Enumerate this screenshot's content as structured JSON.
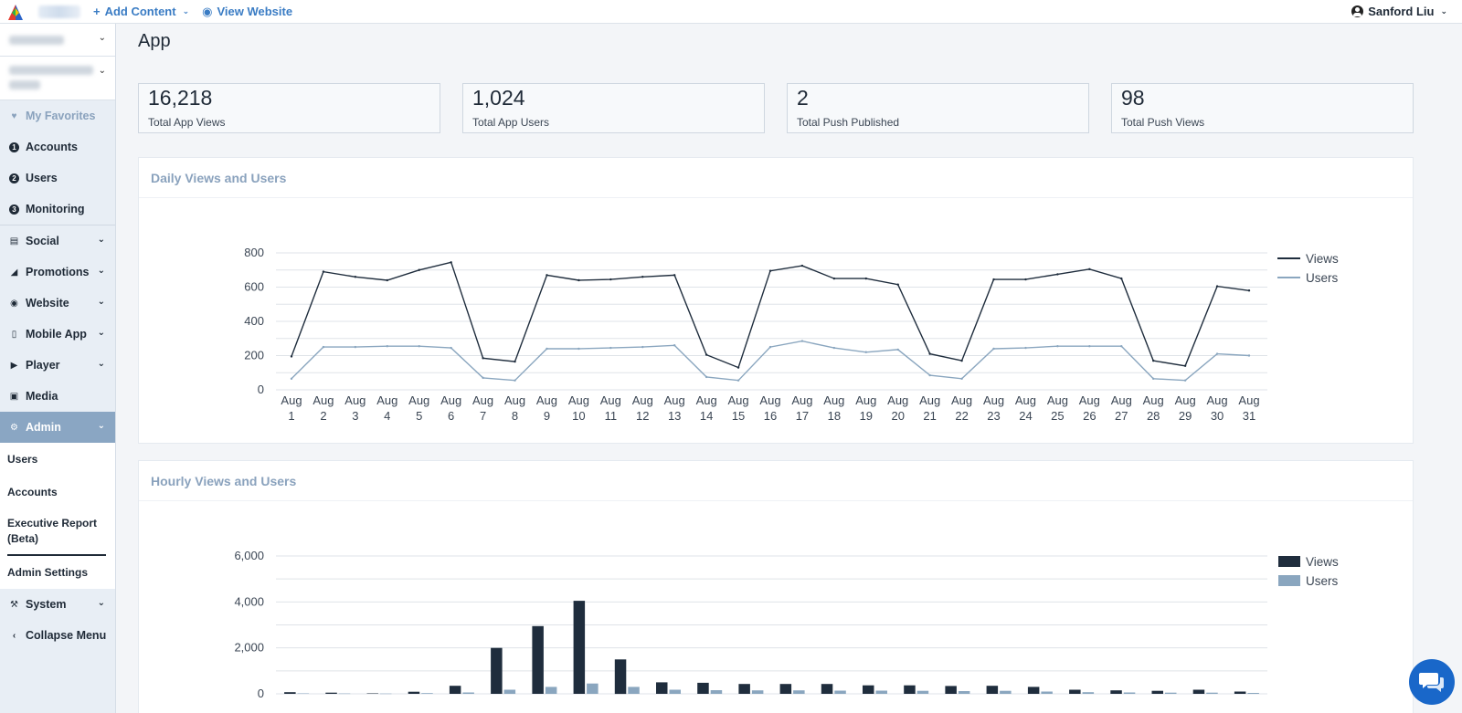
{
  "topbar": {
    "add_content": "Add Content",
    "view_website": "View Website",
    "user_name": "Sanford Liu"
  },
  "sidebar": {
    "favorites": "My Favorites",
    "items": [
      {
        "label": "Accounts",
        "badge": "1"
      },
      {
        "label": "Users",
        "badge": "2"
      },
      {
        "label": "Monitoring",
        "badge": "3"
      }
    ],
    "menu": [
      {
        "label": "Social",
        "icon": "social-icon"
      },
      {
        "label": "Promotions",
        "icon": "megaphone-icon"
      },
      {
        "label": "Website",
        "icon": "globe-icon"
      },
      {
        "label": "Mobile App",
        "icon": "phone-icon"
      },
      {
        "label": "Player",
        "icon": "play-icon"
      },
      {
        "label": "Media",
        "icon": "image-icon"
      }
    ],
    "admin": "Admin",
    "admin_sub": [
      "Users",
      "Accounts",
      "Executive Report",
      "(Beta)",
      "Admin Settings"
    ],
    "system": "System",
    "collapse": "Collapse Menu"
  },
  "page": {
    "title": "App"
  },
  "stats": [
    {
      "value": "16,218",
      "label": "Total App Views"
    },
    {
      "value": "1,024",
      "label": "Total App Users"
    },
    {
      "value": "2",
      "label": "Total Push Published"
    },
    {
      "value": "98",
      "label": "Total Push Views"
    }
  ],
  "colors": {
    "views": "#1f2d3d",
    "users": "#8aa6bf",
    "accent": "#3a7cc4"
  },
  "chart_data": [
    {
      "type": "line",
      "title": "Daily Views and Users",
      "categories": [
        "Aug 1",
        "Aug 2",
        "Aug 3",
        "Aug 4",
        "Aug 5",
        "Aug 6",
        "Aug 7",
        "Aug 8",
        "Aug 9",
        "Aug 10",
        "Aug 11",
        "Aug 12",
        "Aug 13",
        "Aug 14",
        "Aug 15",
        "Aug 16",
        "Aug 17",
        "Aug 18",
        "Aug 19",
        "Aug 20",
        "Aug 21",
        "Aug 22",
        "Aug 23",
        "Aug 24",
        "Aug 25",
        "Aug 26",
        "Aug 27",
        "Aug 28",
        "Aug 29",
        "Aug 30",
        "Aug 31"
      ],
      "series": [
        {
          "name": "Views",
          "values": [
            195,
            690,
            660,
            640,
            700,
            745,
            185,
            165,
            670,
            640,
            645,
            660,
            670,
            205,
            130,
            695,
            725,
            650,
            650,
            615,
            210,
            170,
            645,
            645,
            675,
            705,
            650,
            170,
            140,
            605,
            580
          ]
        },
        {
          "name": "Users",
          "values": [
            65,
            250,
            250,
            255,
            255,
            245,
            70,
            55,
            240,
            240,
            245,
            250,
            260,
            75,
            55,
            250,
            285,
            245,
            220,
            235,
            85,
            65,
            240,
            245,
            255,
            255,
            255,
            65,
            55,
            210,
            200
          ]
        }
      ],
      "yticks": [
        0,
        200,
        400,
        600,
        800
      ],
      "ylim": [
        0,
        800
      ],
      "legend": "right",
      "grid": true
    },
    {
      "type": "bar",
      "title": "Hourly Views and Users",
      "series": [
        {
          "name": "Views",
          "values": [
            70,
            50,
            20,
            90,
            350,
            2000,
            2950,
            4050,
            1500,
            500,
            480,
            430,
            430,
            430,
            370,
            370,
            340,
            350,
            300,
            180,
            150,
            130,
            180,
            100
          ]
        },
        {
          "name": "Users",
          "values": [
            20,
            15,
            10,
            30,
            60,
            180,
            300,
            450,
            300,
            180,
            160,
            150,
            150,
            140,
            140,
            130,
            120,
            130,
            100,
            70,
            60,
            50,
            50,
            40
          ]
        }
      ],
      "yticks": [
        "0",
        "2,000",
        "4,000",
        "6,000"
      ],
      "yvalues": [
        0,
        2000,
        4000,
        6000
      ],
      "ylim": [
        0,
        6000
      ],
      "legend": "right",
      "grid": true
    }
  ]
}
